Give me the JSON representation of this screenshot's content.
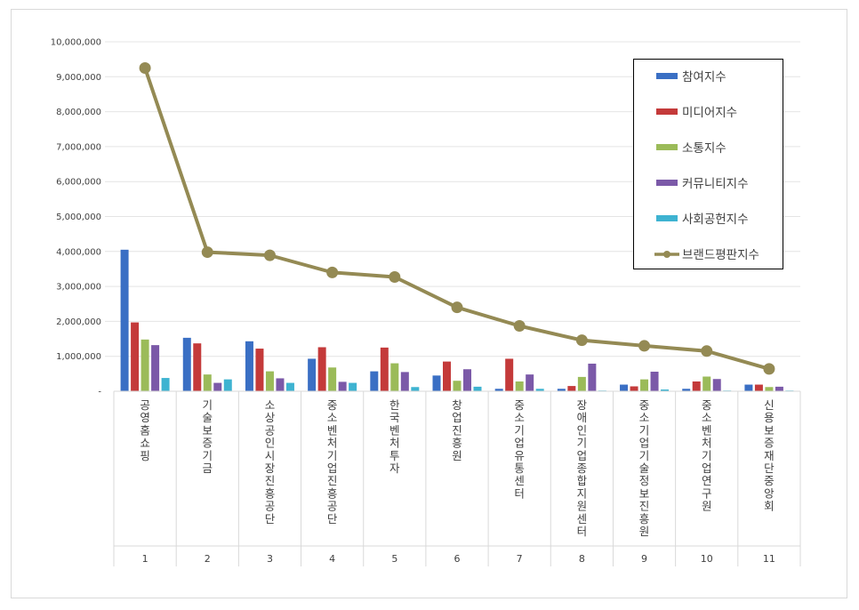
{
  "chart_data": {
    "type": "bar",
    "categories": [
      "1",
      "2",
      "3",
      "4",
      "5",
      "6",
      "7",
      "8",
      "9",
      "10",
      "11"
    ],
    "category_names": [
      "공영홈쇼핑",
      "기술보증기금",
      "소상공인시장진흥공단",
      "중소벤처기업진흥공단",
      "한국벤처투자",
      "창업진흥원",
      "중소기업유통센터",
      "장애인기업종합지원센터",
      "중소기업기술정보진흥원",
      "중소벤처기업연구원",
      "신용보증재단중앙회"
    ],
    "series": [
      {
        "name": "참여지수",
        "type": "bar",
        "color": "#3a6fc4",
        "values": [
          4050000,
          1530000,
          1430000,
          930000,
          570000,
          450000,
          70000,
          70000,
          190000,
          70000,
          190000
        ]
      },
      {
        "name": "미디어지수",
        "type": "bar",
        "color": "#c43a3a",
        "values": [
          1970000,
          1370000,
          1220000,
          1260000,
          1250000,
          850000,
          930000,
          150000,
          140000,
          280000,
          190000
        ]
      },
      {
        "name": "소통지수",
        "type": "bar",
        "color": "#9bbb59",
        "values": [
          1480000,
          480000,
          570000,
          680000,
          800000,
          300000,
          280000,
          410000,
          340000,
          420000,
          120000
        ]
      },
      {
        "name": "커뮤니티지수",
        "type": "bar",
        "color": "#7b59a8",
        "values": [
          1320000,
          240000,
          370000,
          270000,
          550000,
          630000,
          480000,
          790000,
          560000,
          350000,
          130000
        ]
      },
      {
        "name": "사회공헌지수",
        "type": "bar",
        "color": "#3eb3d1",
        "values": [
          380000,
          340000,
          240000,
          240000,
          120000,
          130000,
          70000,
          20000,
          50000,
          20000,
          20000
        ]
      },
      {
        "name": "브랜드평판지수",
        "type": "line",
        "color": "#948a54",
        "values": [
          9250000,
          3980000,
          3890000,
          3400000,
          3270000,
          2400000,
          1870000,
          1460000,
          1300000,
          1150000,
          640000
        ]
      }
    ],
    "ylim": [
      0,
      10000000
    ],
    "y_ticks": [
      "-",
      "1,000,000",
      "2,000,000",
      "3,000,000",
      "4,000,000",
      "5,000,000",
      "6,000,000",
      "7,000,000",
      "8,000,000",
      "9,000,000",
      "10,000,000"
    ],
    "grid": true,
    "legend_position": "top-right"
  }
}
